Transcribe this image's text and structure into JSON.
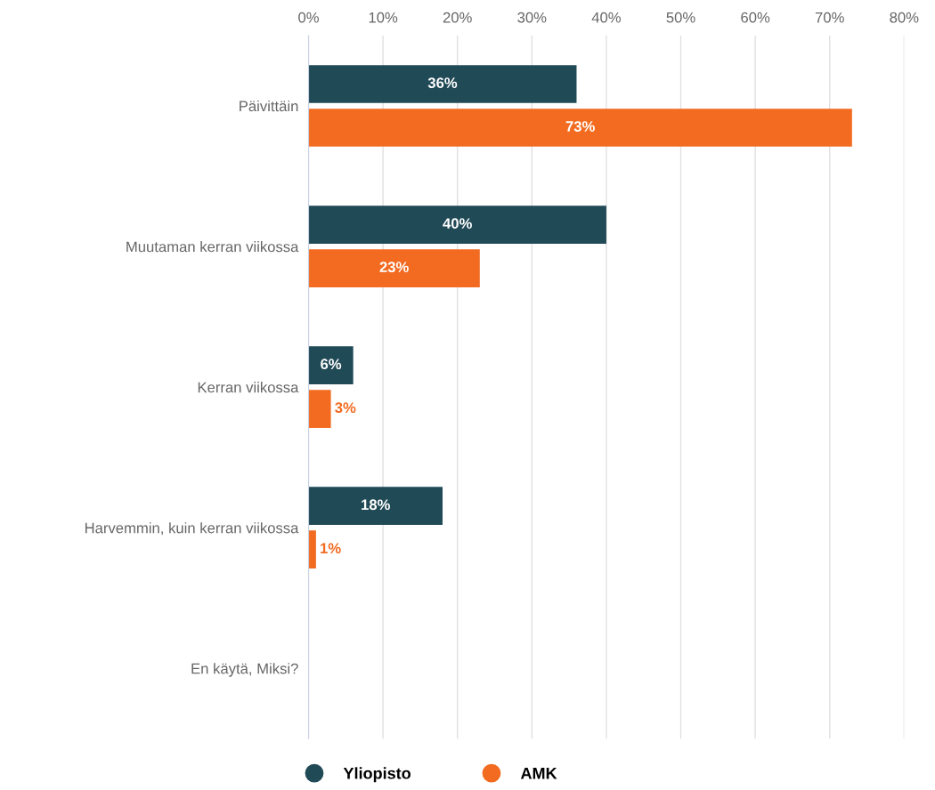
{
  "chart_data": {
    "type": "bar",
    "orientation": "horizontal",
    "categories": [
      "Päivittäin",
      "Muutaman kerran viikossa",
      "Kerran viikossa",
      "Harvemmin, kuin kerran viikossa",
      "En käytä, Miksi?"
    ],
    "series": [
      {
        "name": "Yliopisto",
        "color": "#214a57",
        "values": [
          36,
          40,
          6,
          18,
          null
        ],
        "value_labels": [
          "36%",
          "40%",
          "6%",
          "18%",
          null
        ]
      },
      {
        "name": "AMK",
        "color": "#f26b21",
        "values": [
          73,
          23,
          3,
          1,
          null
        ],
        "value_labels": [
          "73%",
          "23%",
          "3%",
          "1%",
          null
        ]
      }
    ],
    "xlim": [
      0,
      80
    ],
    "xticks": [
      {
        "value": 0,
        "label": "0%"
      },
      {
        "value": 10,
        "label": "10%"
      },
      {
        "value": 20,
        "label": "20%"
      },
      {
        "value": 30,
        "label": "30%"
      },
      {
        "value": 40,
        "label": "40%"
      },
      {
        "value": 50,
        "label": "50%"
      },
      {
        "value": 60,
        "label": "60%"
      },
      {
        "value": 70,
        "label": "70%"
      },
      {
        "value": 80,
        "label": "80%"
      }
    ],
    "grid": "x",
    "legend": "bottom"
  }
}
